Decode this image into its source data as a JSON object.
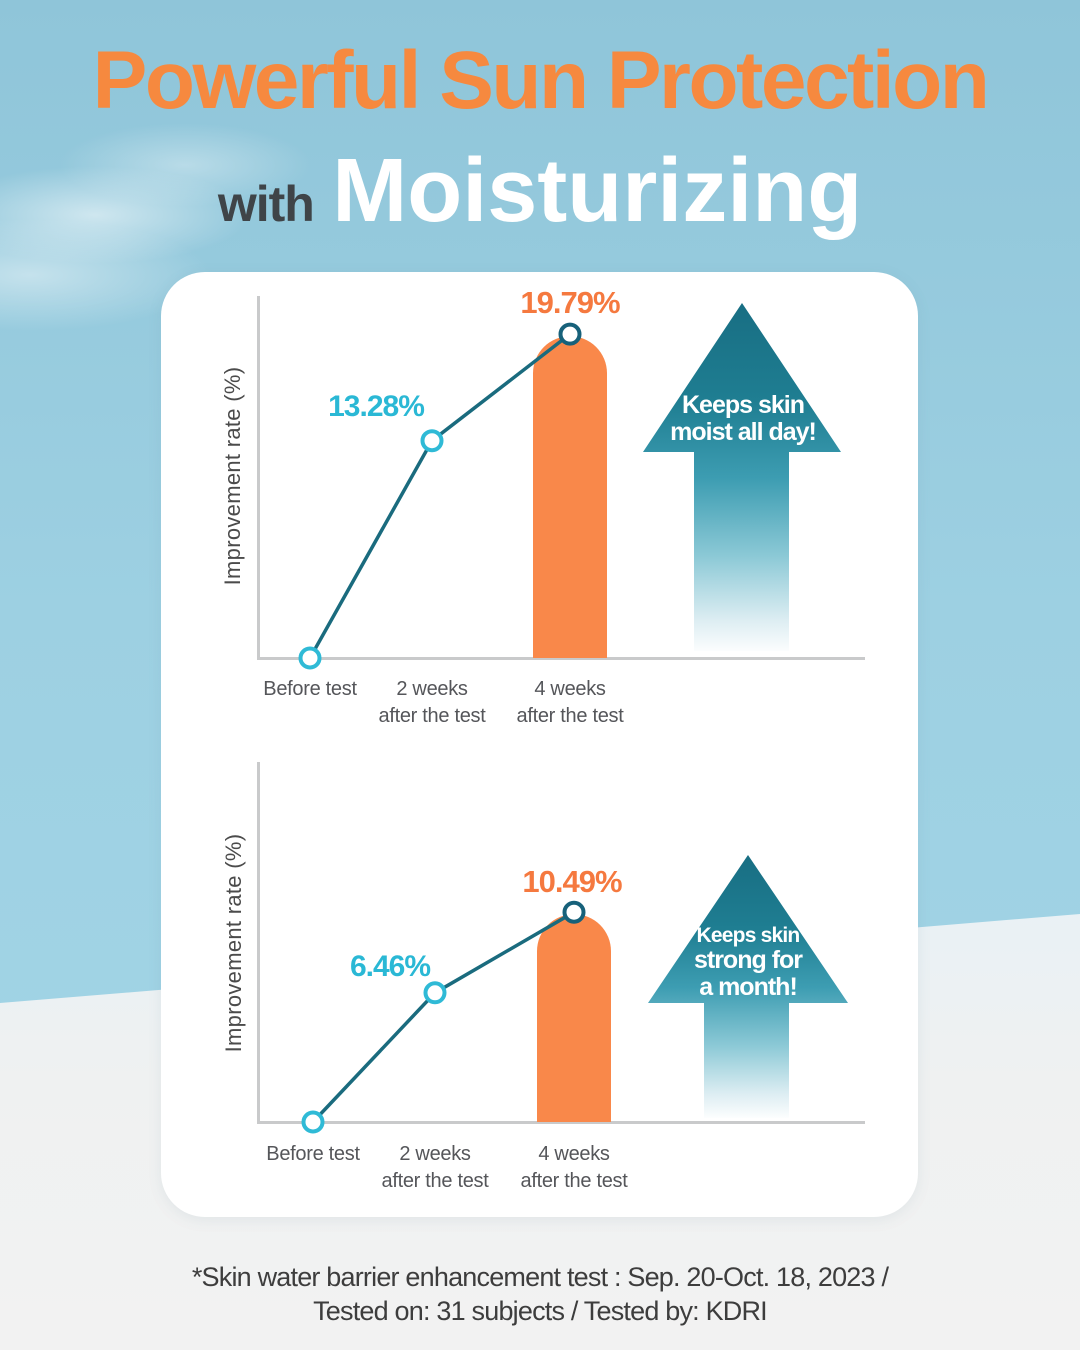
{
  "title": {
    "line1": "Powerful Sun Protection",
    "line2_prefix": "with",
    "line2_main": "Moisturizing"
  },
  "chart_data": [
    {
      "type": "line",
      "ylabel": "Improvement rate (%)",
      "categories": [
        "Before test",
        "2 weeks after the test",
        "4 weeks after the test"
      ],
      "x_tick_lines": [
        [
          "Before test"
        ],
        [
          "2 weeks",
          "after the test"
        ],
        [
          "4 weeks",
          "after the test"
        ]
      ],
      "values": [
        0,
        13.28,
        19.79
      ],
      "point_labels": [
        "",
        "13.28%",
        "19.79%"
      ],
      "bar": {
        "category": "4 weeks after the test",
        "value": 19.79,
        "color": "#f9884a"
      },
      "annotation": "Keeps skin moist all day!",
      "annotation_lines": [
        "Keeps skin",
        "moist all day!"
      ],
      "ylim": [
        0,
        22
      ],
      "grid": false,
      "legend": false
    },
    {
      "type": "line",
      "ylabel": "Improvement rate (%)",
      "categories": [
        "Before test",
        "2 weeks after the test",
        "4 weeks after the test"
      ],
      "x_tick_lines": [
        [
          "Before test"
        ],
        [
          "2 weeks",
          "after the test"
        ],
        [
          "4 weeks",
          "after the test"
        ]
      ],
      "values": [
        0,
        6.46,
        10.49
      ],
      "point_labels": [
        "",
        "6.46%",
        "10.49%"
      ],
      "bar": {
        "category": "4 weeks after the test",
        "value": 10.49,
        "color": "#f9884a"
      },
      "annotation": "Keeps skin strong for a month!",
      "annotation_lines": [
        "Keeps skin",
        "strong for",
        "a month!"
      ],
      "ylim": [
        0,
        18
      ],
      "grid": false,
      "legend": false
    }
  ],
  "footer": {
    "line1": "*Skin water barrier enhancement test : Sep. 20-Oct. 18, 2023 /",
    "line2": "Tested on: 31 subjects / Tested by: KDRI"
  },
  "colors": {
    "sky": "#9dd0e2",
    "title_orange": "#f6893f",
    "title_gray": "#3f4448",
    "bar_orange": "#f9884a",
    "label_orange": "#f5793f",
    "label_cyan": "#2ab8d5",
    "line_teal": "#1a6b7e",
    "arrow_teal": "#1e7c90",
    "axis_gray": "#c9cacb"
  }
}
